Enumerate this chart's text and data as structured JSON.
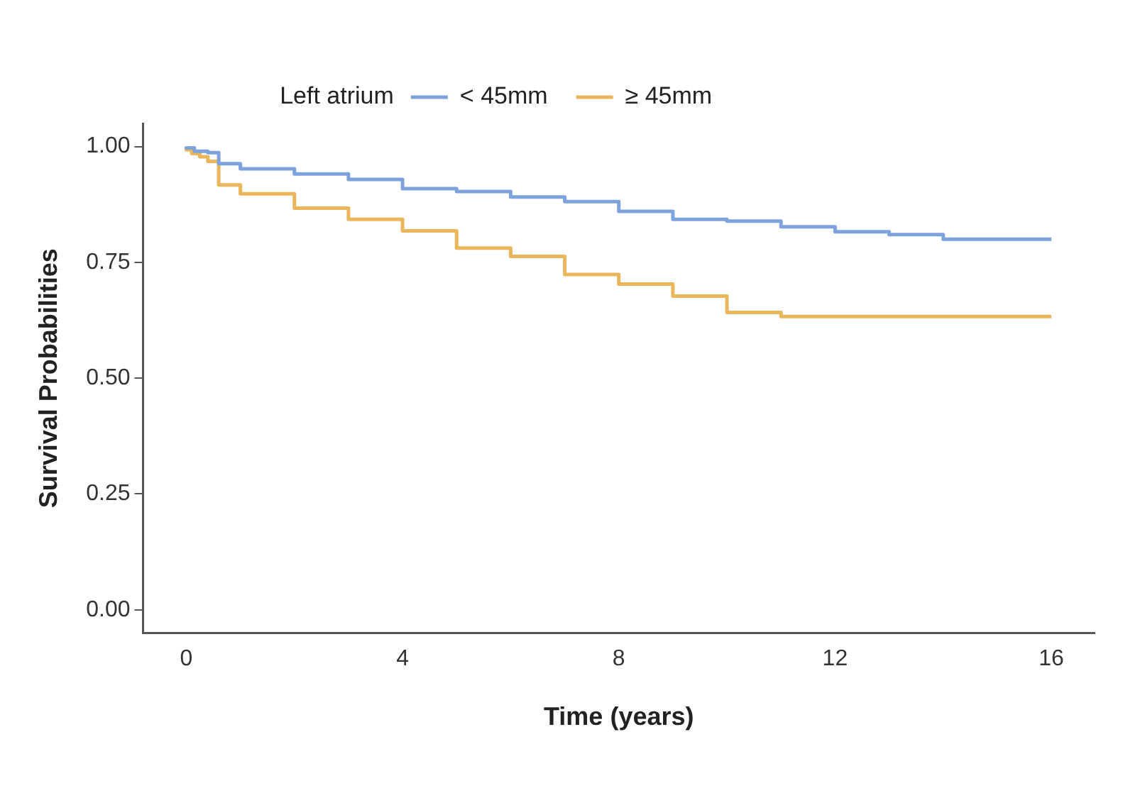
{
  "chart_data": {
    "type": "step",
    "xlabel": "Time (years)",
    "ylabel": "Survival Probabilities",
    "legend_title": "Left atrium",
    "series": [
      {
        "name": "< 45mm",
        "color": "#7ea2dc",
        "x": [
          0,
          0.15,
          0.4,
          0.6,
          1,
          2,
          3,
          4,
          5,
          6,
          7,
          8,
          9,
          10,
          11,
          12,
          13,
          14,
          15,
          16
        ],
        "values": [
          1.0,
          0.997,
          0.99,
          0.987,
          0.963,
          0.952,
          0.941,
          0.929,
          0.909,
          0.903,
          0.891,
          0.881,
          0.86,
          0.843,
          0.839,
          0.827,
          0.816,
          0.81,
          0.8,
          0.8
        ]
      },
      {
        "name": "≥ 45mm",
        "color": "#eab65c",
        "x": [
          0,
          0.1,
          0.25,
          0.4,
          0.6,
          1,
          2,
          3,
          4,
          5,
          6,
          7,
          8,
          9,
          10,
          11,
          12,
          16
        ],
        "values": [
          1.0,
          0.993,
          0.985,
          0.978,
          0.968,
          0.917,
          0.898,
          0.867,
          0.843,
          0.818,
          0.781,
          0.763,
          0.724,
          0.703,
          0.677,
          0.642,
          0.633,
          0.633
        ]
      }
    ],
    "xlim": [
      -0.8,
      16.8
    ],
    "xticks": [
      0,
      4,
      8,
      12,
      16
    ],
    "ylim": [
      -0.05,
      1.05
    ],
    "yticks": [
      {
        "value": 0,
        "label": "0.00"
      },
      {
        "value": 0.25,
        "label": "0.25"
      },
      {
        "value": 0.5,
        "label": "0.50"
      },
      {
        "value": 0.75,
        "label": "0.75"
      },
      {
        "value": 1,
        "label": "1.00"
      }
    ],
    "grid": false,
    "legend": "top",
    "line_style": "solid",
    "marker": "none"
  }
}
